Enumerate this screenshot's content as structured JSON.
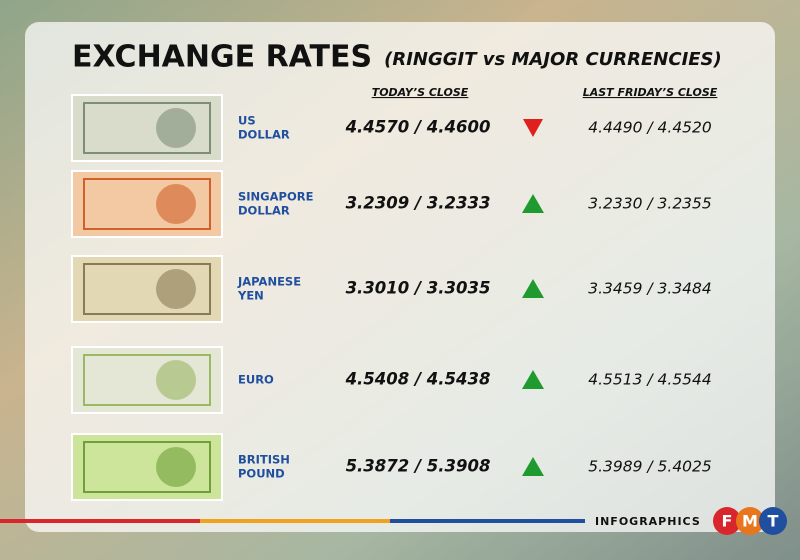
{
  "header": {
    "title": "EXCHANGE RATES",
    "subtitle": "(RINGGIT vs MAJOR CURRENCIES)"
  },
  "columns": {
    "today": "TODAY’S CLOSE",
    "last_friday": "LAST FRIDAY’S CLOSE"
  },
  "rows": [
    {
      "name": [
        "US",
        "DOLLAR"
      ],
      "today": "4.4570 / 4.4600",
      "trend": "down",
      "last_friday": "4.4490 / 4.4520"
    },
    {
      "name": [
        "SINGAPORE",
        "DOLLAR"
      ],
      "today": "3.2309 / 3.2333",
      "trend": "up",
      "last_friday": "3.2330 / 3.2355"
    },
    {
      "name": [
        "JAPANESE",
        "YEN"
      ],
      "today": "3.3010 / 3.3035",
      "trend": "up",
      "last_friday": "3.3459 / 3.3484"
    },
    {
      "name": [
        "EURO"
      ],
      "today": "4.5408 / 4.5438",
      "trend": "up",
      "last_friday": "4.5513 / 4.5544"
    },
    {
      "name": [
        "BRITISH",
        "POUND"
      ],
      "today": "5.3872 / 5.3908",
      "trend": "up",
      "last_friday": "5.3989 / 5.4025"
    }
  ],
  "trend_colors": {
    "up": "#1f9a2e",
    "down": "#e0201c"
  },
  "footer": {
    "label": "INFOGRAPHICS",
    "logo": [
      "F",
      "M",
      "T"
    ]
  }
}
